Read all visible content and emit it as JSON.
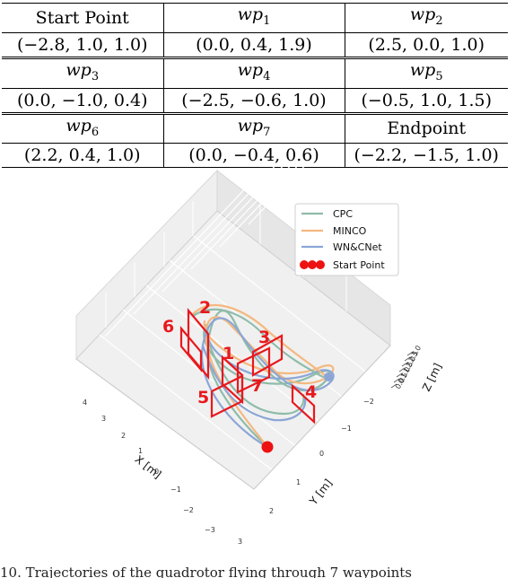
{
  "table": {
    "rows": [
      [
        "Start Point",
        "wp1",
        "wp2"
      ],
      [
        "(−2.8, 1.0, 1.0)",
        "(0.0, 0.4, 1.9)",
        "(2.5, 0.0, 1.0)"
      ],
      [
        "wp3",
        "wp4",
        "wp5"
      ],
      [
        "(0.0, −1.0, 0.4)",
        "(−2.5, −0.6, 1.0)",
        "(−0.5, 1.0, 1.5)"
      ],
      [
        "wp6",
        "wp7",
        "Endpoint"
      ],
      [
        "(2.2, 0.4, 1.0)",
        "(0.0, −0.4, 0.6)",
        "(−2.2, −1.5, 1.0)"
      ]
    ]
  },
  "figure": {
    "legend": {
      "items": [
        {
          "label": "CPC",
          "color": "#8fbcaa"
        },
        {
          "label": "MINCO",
          "color": "#f4b880"
        },
        {
          "label": "WN&CNet",
          "color": "#8ba6d6"
        },
        {
          "label": "Start Point",
          "color": "#ee1111"
        }
      ]
    },
    "x_axis": {
      "label": "X [m]",
      "ticks": [
        "4",
        "3",
        "2",
        "1",
        "0",
        "−1",
        "−2",
        "−3"
      ]
    },
    "y_axis": {
      "label": "Y [m]",
      "ticks": [
        "3",
        "2",
        "1",
        "0",
        "−1",
        "−2"
      ]
    },
    "z_axis": {
      "label": "Z [m]",
      "ticks": [
        "0.0",
        "0.5",
        "1.0",
        "1.5",
        "2.0",
        "2.5",
        "3.0"
      ]
    },
    "gate_numbers": [
      "1",
      "2",
      "3",
      "4",
      "5",
      "6",
      "7"
    ],
    "gate_color": "#e8191e"
  },
  "caption": {
    "text": "10. Trajectories of the quadrotor flying through 7 waypoints"
  }
}
